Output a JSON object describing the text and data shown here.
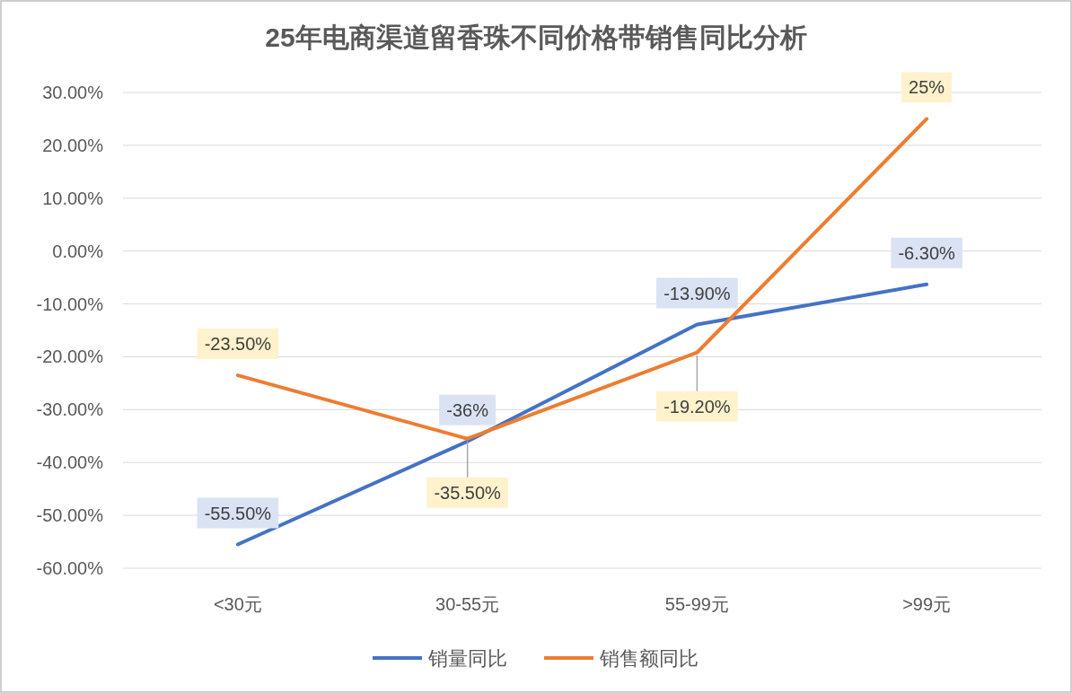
{
  "chart_data": {
    "type": "line",
    "title": "25年电商渠道留香珠不同价格带销售同比分析",
    "categories": [
      "<30元",
      "30-55元",
      "55-99元",
      ">99元"
    ],
    "series": [
      {
        "name": "销量同比",
        "color": "#4472c4",
        "values": [
          -55.5,
          -36,
          -13.9,
          -6.3
        ],
        "value_labels": [
          "-55.50%",
          "-36%",
          "-13.90%",
          "-6.30%"
        ]
      },
      {
        "name": "销售额同比",
        "color": "#ed7d31",
        "values": [
          -23.5,
          -35.5,
          -19.2,
          25
        ],
        "value_labels": [
          "-23.50%",
          "-35.50%",
          "-19.20%",
          "25%"
        ]
      }
    ],
    "ylim": [
      -60,
      30
    ],
    "yticks": [
      {
        "value": 30,
        "label": "30.00%"
      },
      {
        "value": 20,
        "label": "20.00%"
      },
      {
        "value": 10,
        "label": "10.00%"
      },
      {
        "value": 0,
        "label": "0.00%"
      },
      {
        "value": -10,
        "label": "-10.00%"
      },
      {
        "value": -20,
        "label": "-20.00%"
      },
      {
        "value": -30,
        "label": "-30.00%"
      },
      {
        "value": -40,
        "label": "-40.00%"
      },
      {
        "value": -50,
        "label": "-50.00%"
      },
      {
        "value": -60,
        "label": "-60.00%"
      }
    ],
    "grid": "y",
    "legend": "bottom",
    "marker": "none",
    "line_style": "solid"
  }
}
